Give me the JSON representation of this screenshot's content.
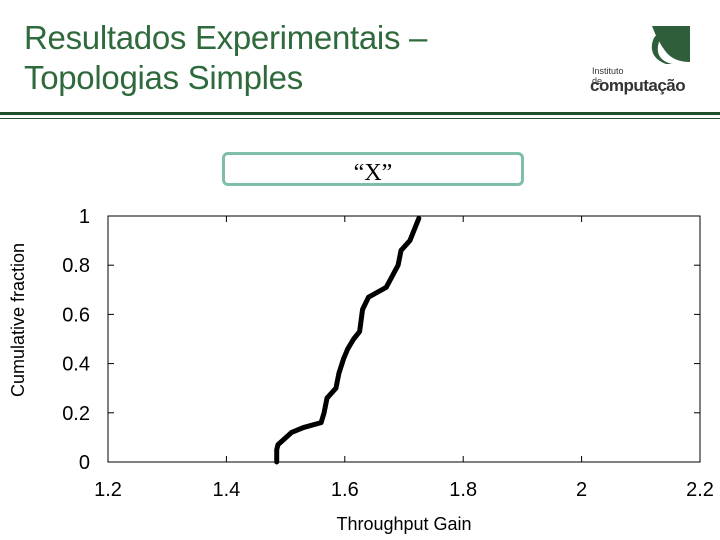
{
  "slide": {
    "title_line1": "Resultados Experimentais –",
    "title_line2": "Topologias Simples",
    "logo_small": "Instituto de",
    "logo_big": "computação",
    "logo_corner": "uff",
    "label_box": "“X”"
  },
  "colors": {
    "title": "#2f6a3c",
    "rule": "#1e4f2b",
    "label_border": "#7fbfa8",
    "line": "#000000"
  },
  "chart_data": {
    "type": "line",
    "title": "",
    "xlabel": "Throughput Gain",
    "ylabel": "Cumulative fraction",
    "xlim": [
      1.2,
      2.2
    ],
    "ylim": [
      0,
      1
    ],
    "xticks": [
      1.2,
      1.4,
      1.6,
      1.8,
      2,
      2.2
    ],
    "yticks": [
      0,
      0.2,
      0.4,
      0.6,
      0.8,
      1
    ],
    "xtick_labels": [
      "1.2",
      "1.4",
      "1.6",
      "1.8",
      "2",
      "2.2"
    ],
    "ytick_labels": [
      "0",
      "0.2",
      "0.4",
      "0.6",
      "0.8",
      "1"
    ],
    "grid": false,
    "series": [
      {
        "x": [
          1.485,
          1.485,
          1.487,
          1.51,
          1.53,
          1.56,
          1.565,
          1.57,
          1.585,
          1.59,
          1.598,
          1.605,
          1.615,
          1.625,
          1.63,
          1.64,
          1.67,
          1.69,
          1.695,
          1.71,
          1.725
        ],
        "y": [
          0,
          0.05,
          0.07,
          0.12,
          0.14,
          0.16,
          0.2,
          0.26,
          0.3,
          0.36,
          0.42,
          0.46,
          0.5,
          0.53,
          0.62,
          0.67,
          0.71,
          0.8,
          0.86,
          0.9,
          0.99
        ]
      }
    ]
  }
}
